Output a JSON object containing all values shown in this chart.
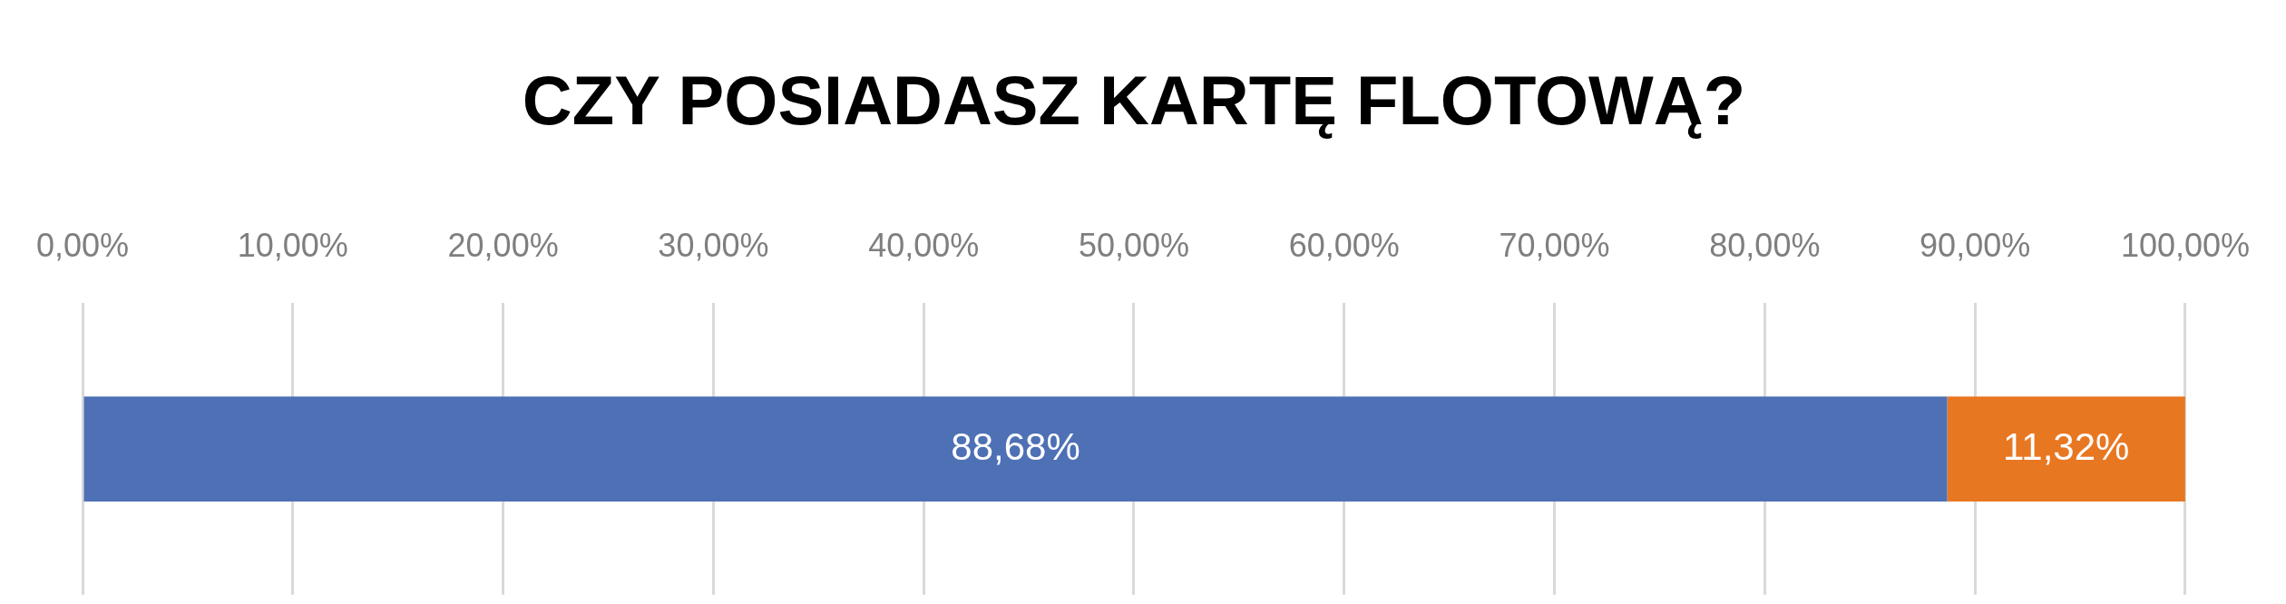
{
  "chart_data": {
    "type": "bar",
    "title": "CZY POSIADASZ KARTĘ FLOTOWĄ?",
    "orientation": "horizontal",
    "stacked": true,
    "categories": [
      null
    ],
    "series": [
      {
        "color": "#4e70b5",
        "values": [
          88.68
        ],
        "value_labels": [
          "88,68%"
        ]
      },
      {
        "color": "#e87722",
        "values": [
          11.32
        ],
        "value_labels": [
          "11,32%"
        ]
      }
    ],
    "xlim": [
      0,
      100
    ],
    "xticks": [
      {
        "value": 0,
        "label": "0,00%"
      },
      {
        "value": 10,
        "label": "10,00%"
      },
      {
        "value": 20,
        "label": "20,00%"
      },
      {
        "value": 30,
        "label": "30,00%"
      },
      {
        "value": 40,
        "label": "40,00%"
      },
      {
        "value": 50,
        "label": "50,00%"
      },
      {
        "value": 60,
        "label": "60,00%"
      },
      {
        "value": 70,
        "label": "70,00%"
      },
      {
        "value": 80,
        "label": "80,00%"
      },
      {
        "value": 90,
        "label": "90,00%"
      },
      {
        "value": 100,
        "label": "100,00%"
      }
    ],
    "grid": "x"
  }
}
